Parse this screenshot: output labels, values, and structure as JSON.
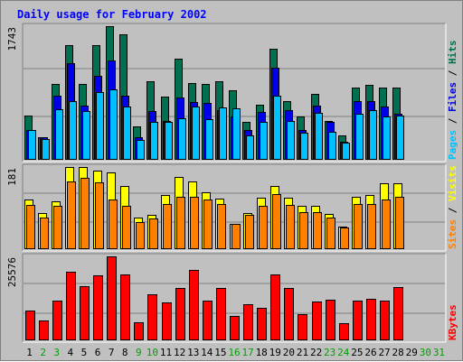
{
  "chart_data": {
    "type": "bar",
    "title": "Daily usage for February 2002",
    "colors": {
      "hits": "#007050",
      "files": "#0000e8",
      "pages": "#00c0ff",
      "visits": "#ffff00",
      "sites": "#ff8000",
      "kbytes": "#ff0000",
      "title": "#0000ff",
      "weekend_label": "#00a000",
      "weekday_label": "#000000",
      "panel_bg": "#c0c0c0",
      "grid": "#808080"
    },
    "categories": [
      "1",
      "2",
      "3",
      "4",
      "5",
      "6",
      "7",
      "8",
      "9",
      "10",
      "11",
      "12",
      "13",
      "14",
      "15",
      "16",
      "17",
      "18",
      "19",
      "20",
      "21",
      "22",
      "23",
      "24",
      "25",
      "26",
      "27",
      "28",
      "29",
      "30",
      "31"
    ],
    "weekend_days": [
      "2",
      "3",
      "9",
      "10",
      "16",
      "17",
      "23",
      "24",
      "30",
      "31"
    ],
    "panels": [
      {
        "id": "top",
        "ymax_label": "1743",
        "ymax": 1743,
        "ylabel_parts": [
          {
            "text": "Pages",
            "color": "#00c0ff"
          },
          {
            "text": " / ",
            "color": "#000000"
          },
          {
            "text": "Files",
            "color": "#0000e8"
          },
          {
            "text": " / ",
            "color": "#000000"
          },
          {
            "text": "Hits",
            "color": "#007050"
          }
        ],
        "series": [
          {
            "name": "Hits",
            "color": "#007050",
            "values": [
              580,
              300,
              990,
              1490,
              990,
              1490,
              1743,
              1640,
              430,
              1020,
              830,
              1320,
              1000,
              990,
              1020,
              910,
              500,
              720,
              1450,
              760,
              560,
              860,
              510,
              320,
              940,
              980,
              940,
              940,
              null,
              null,
              null
            ]
          },
          {
            "name": "Files",
            "color": "#0000e8",
            "values": [
              390,
              300,
              840,
              1260,
              710,
              1090,
              1290,
              840,
              300,
              640,
              510,
              810,
              750,
              740,
              650,
              560,
              390,
              630,
              1200,
              650,
              390,
              710,
              500,
              230,
              770,
              770,
              690,
              600,
              null,
              null,
              null
            ]
          },
          {
            "name": "Pages",
            "color": "#00c0ff",
            "values": [
              390,
              270,
              660,
              760,
              640,
              880,
              920,
              690,
              260,
              500,
              500,
              540,
              700,
              530,
              680,
              670,
              320,
              500,
              840,
              510,
              350,
              610,
              370,
              220,
              600,
              650,
              560,
              580,
              null,
              null,
              null
            ]
          }
        ]
      },
      {
        "id": "middle",
        "ymax_label": "181",
        "ymax": 181,
        "ylabel_parts": [
          {
            "text": "Sites",
            "color": "#ff8000"
          },
          {
            "text": " / ",
            "color": "#000000"
          },
          {
            "text": "Visits",
            "color": "#ffff00"
          }
        ],
        "series": [
          {
            "name": "Visits",
            "color": "#ffff00",
            "values": [
              110,
              80,
              105,
              181,
              181,
              173,
              170,
              140,
              70,
              75,
              120,
              160,
              150,
              125,
              112,
              55,
              80,
              113,
              140,
              113,
              95,
              95,
              78,
              50,
              115,
              120,
              145,
              145,
              null,
              null,
              null
            ]
          },
          {
            "name": "Sites",
            "color": "#ff8000",
            "values": [
              97,
              70,
              95,
              150,
              157,
              147,
              110,
              95,
              60,
              67,
              100,
              115,
              115,
              110,
              100,
              55,
              75,
              95,
              122,
              97,
              82,
              82,
              70,
              48,
              100,
              100,
              110,
              115,
              null,
              null,
              null
            ]
          }
        ]
      },
      {
        "id": "bottom",
        "ymax_label": "25576",
        "ymax": 25576,
        "ylabel_parts": [
          {
            "text": "KBytes",
            "color": "#ff0000"
          }
        ],
        "series": [
          {
            "name": "KBytes",
            "color": "#ff0000",
            "values": [
              9000,
              6000,
              12000,
              21000,
              16500,
              19800,
              25576,
              20000,
              5500,
              14100,
              11500,
              16000,
              21500,
              12200,
              16000,
              7500,
              11000,
              10000,
              20000,
              16000,
              8000,
              11800,
              12300,
              5200,
              12000,
              12600,
              12200,
              16200,
              null,
              null,
              null
            ]
          }
        ]
      }
    ]
  }
}
